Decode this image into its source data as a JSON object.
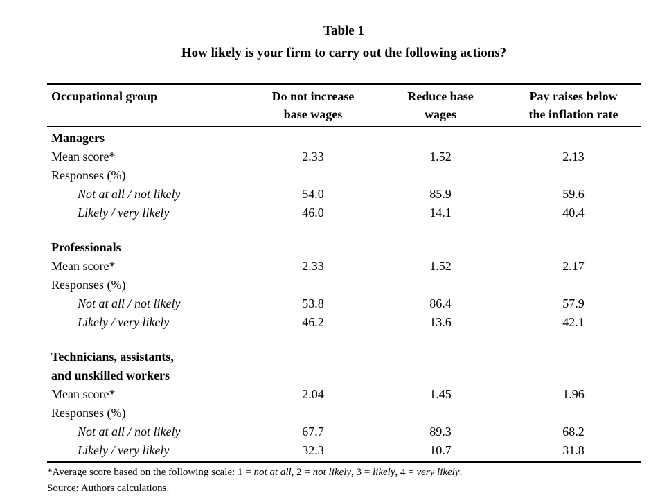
{
  "title": {
    "line1": "Table 1",
    "line2": "How likely is your firm to carry out the following actions?"
  },
  "table": {
    "headers": [
      "Occupational group",
      "Do not increase\nbase wages",
      "Reduce base\nwages",
      "Pay raises below\nthe inflation rate"
    ],
    "rows": [
      {
        "type": "section",
        "label": "Managers",
        "values": [
          "",
          "",
          ""
        ]
      },
      {
        "type": "data",
        "label": "Mean score*",
        "values": [
          "2.33",
          "1.52",
          "2.13"
        ]
      },
      {
        "type": "data",
        "label": "Responses (%)",
        "values": [
          "",
          "",
          ""
        ]
      },
      {
        "type": "indent",
        "label": "Not at all / not likely",
        "values": [
          "54.0",
          "85.9",
          "59.6"
        ]
      },
      {
        "type": "indent",
        "label": "Likely / very likely",
        "values": [
          "46.0",
          "14.1",
          "40.4"
        ]
      },
      {
        "type": "spacer"
      },
      {
        "type": "section",
        "label": "Professionals",
        "values": [
          "",
          "",
          ""
        ]
      },
      {
        "type": "data",
        "label": "Mean score*",
        "values": [
          "2.33",
          "1.52",
          "2.17"
        ]
      },
      {
        "type": "data",
        "label": "Responses (%)",
        "values": [
          "",
          "",
          ""
        ]
      },
      {
        "type": "indent",
        "label": "Not at all / not likely",
        "values": [
          "53.8",
          "86.4",
          "57.9"
        ]
      },
      {
        "type": "indent",
        "label": "Likely / very likely",
        "values": [
          "46.2",
          "13.6",
          "42.1"
        ]
      },
      {
        "type": "spacer"
      },
      {
        "type": "section",
        "label": "Technicians, assistants,\nand unskilled workers",
        "values": [
          "",
          "",
          ""
        ]
      },
      {
        "type": "data",
        "label": "Mean score*",
        "values": [
          "2.04",
          "1.45",
          "1.96"
        ]
      },
      {
        "type": "data",
        "label": "Responses (%)",
        "values": [
          "",
          "",
          ""
        ]
      },
      {
        "type": "indent",
        "label": "Not at all / not likely",
        "values": [
          "67.7",
          "89.3",
          "68.2"
        ]
      },
      {
        "type": "indent",
        "label": "Likely / very likely",
        "values": [
          "32.3",
          "10.7",
          "31.8"
        ]
      }
    ]
  },
  "notes": {
    "footnote_segments": [
      {
        "text": "*Average score based on the following scale: 1 = ",
        "italic": false
      },
      {
        "text": "not at all",
        "italic": true
      },
      {
        "text": ", 2 = ",
        "italic": false
      },
      {
        "text": "not likely",
        "italic": true
      },
      {
        "text": ", 3 = ",
        "italic": false
      },
      {
        "text": "likely",
        "italic": true
      },
      {
        "text": ", 4 = ",
        "italic": false
      },
      {
        "text": "very likely",
        "italic": true
      },
      {
        "text": ".",
        "italic": false
      }
    ],
    "source": "Source: Authors calculations."
  },
  "colors": {
    "background": "#ffffff",
    "text": "#000000",
    "rule": "#000000"
  }
}
